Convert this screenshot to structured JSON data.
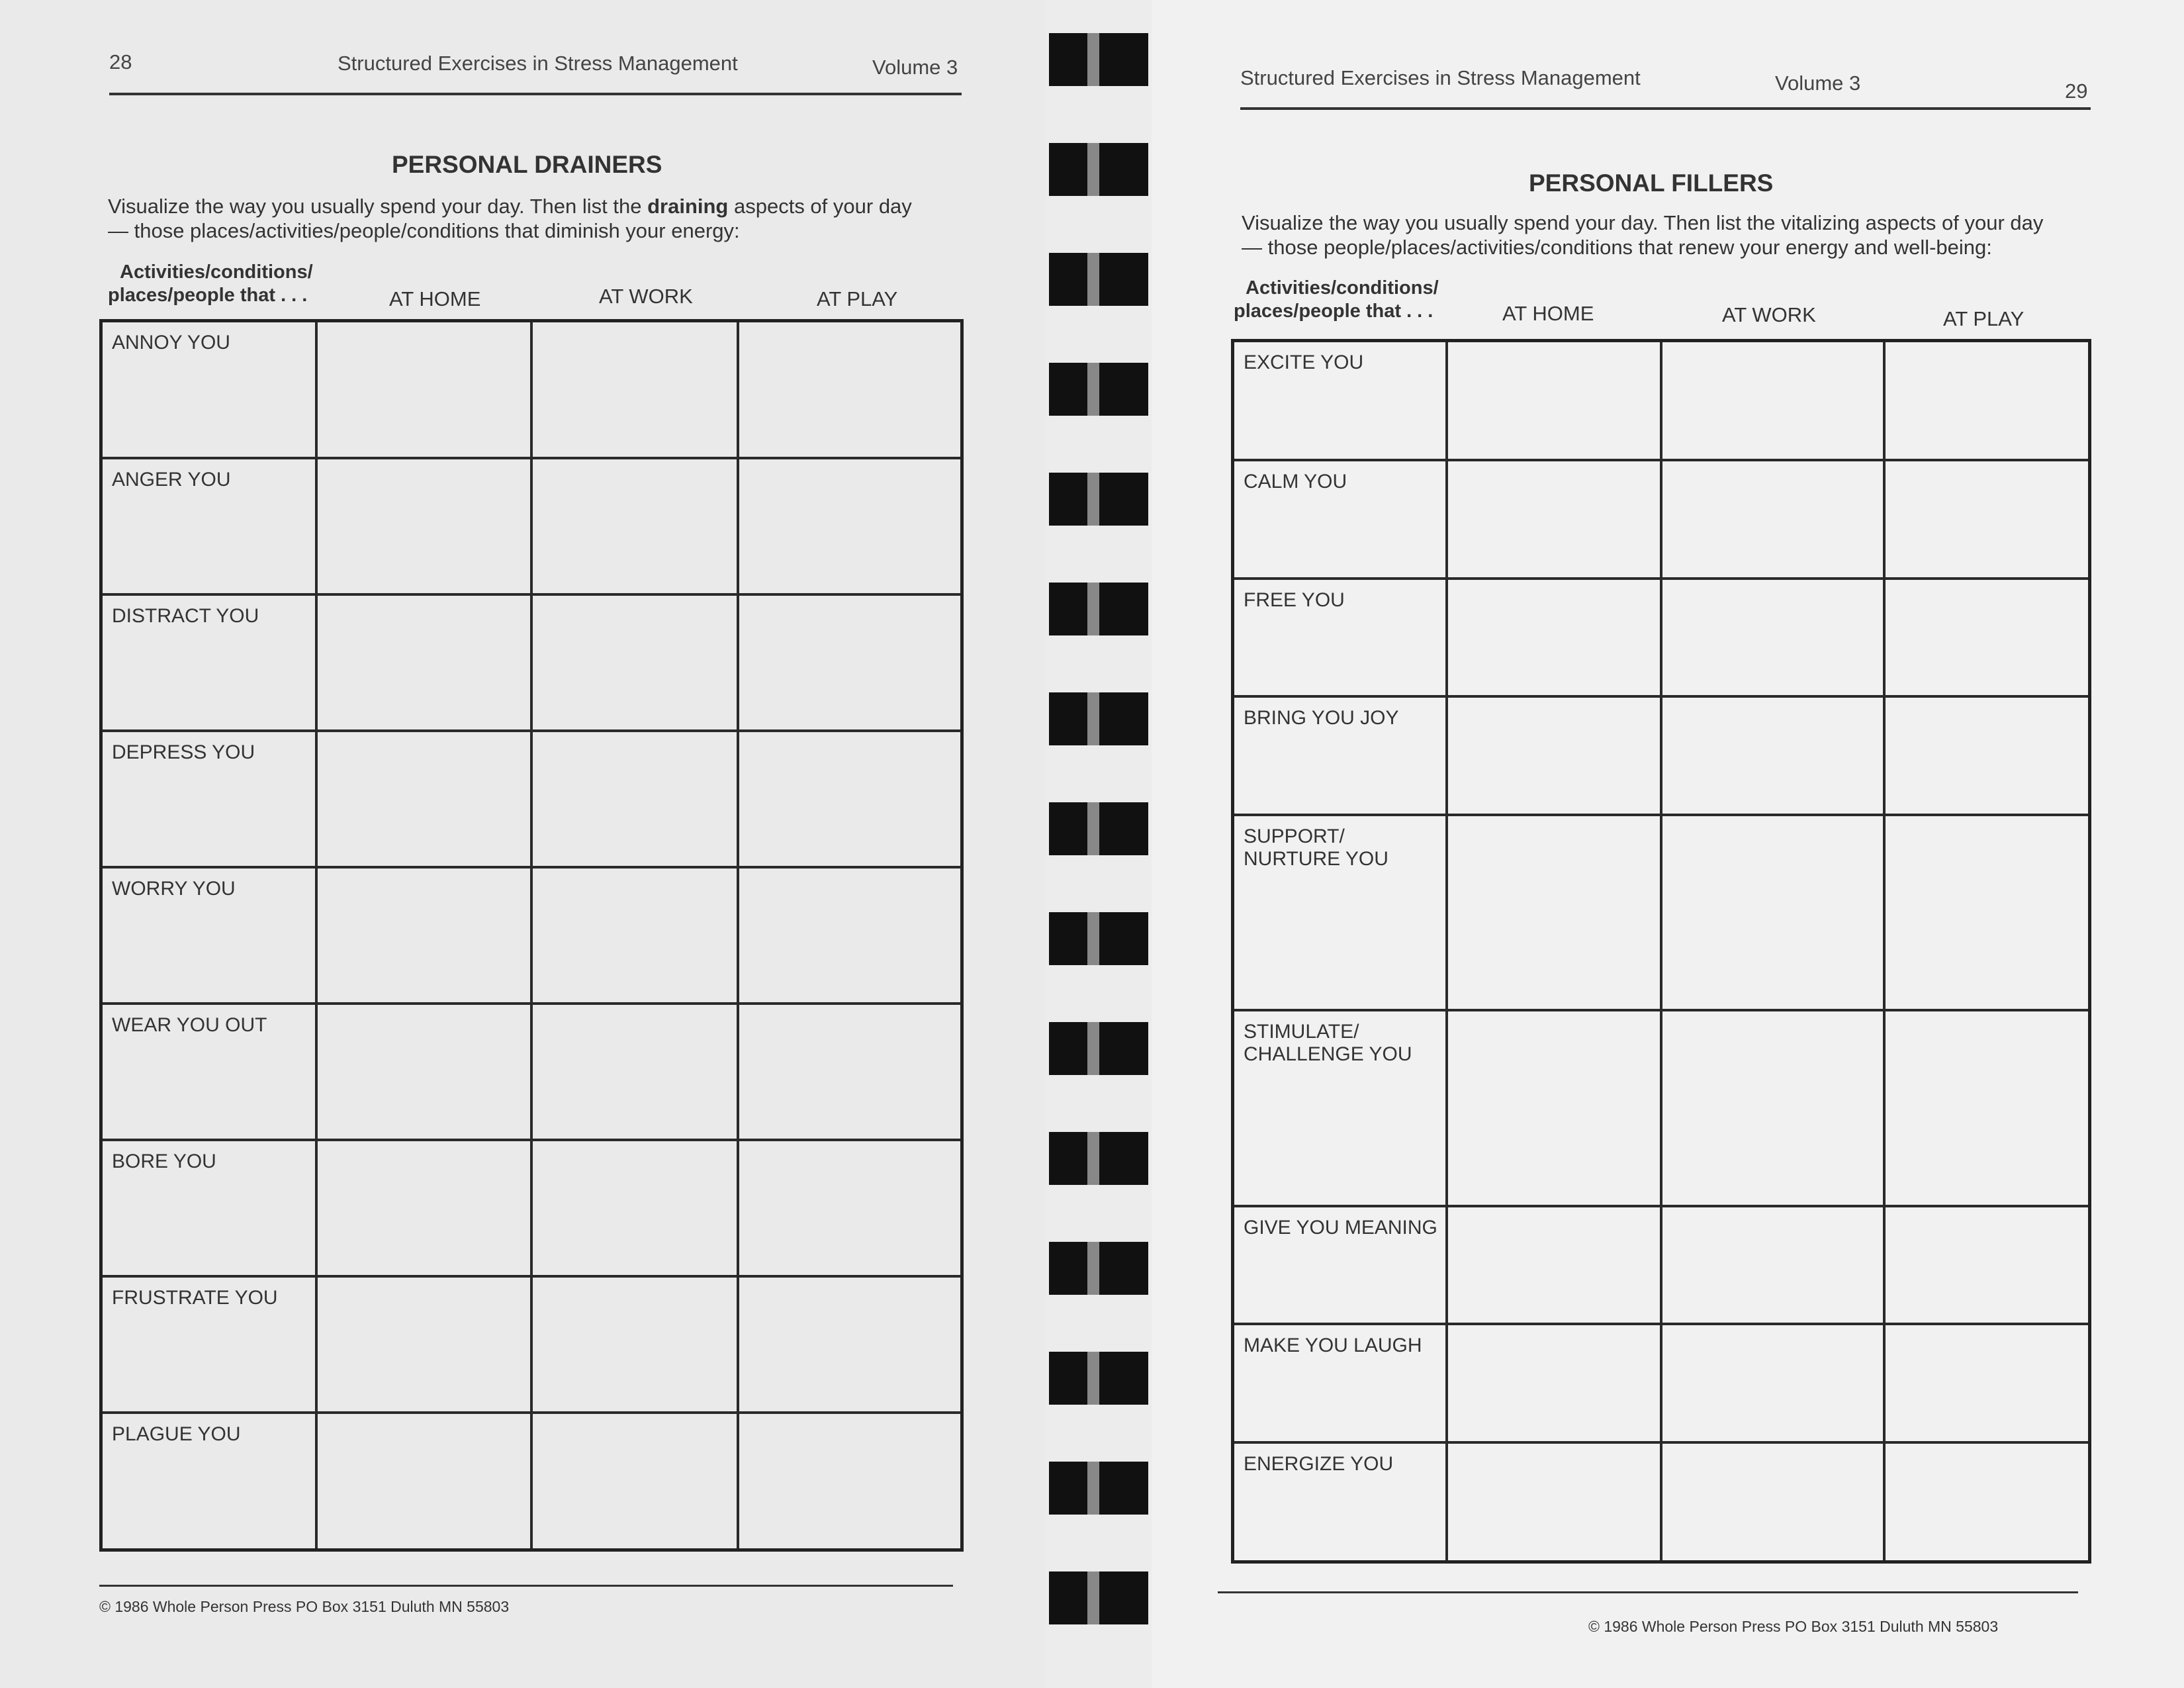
{
  "left_page": {
    "page_number": "28",
    "book_title": "Structured Exercises in Stress Management",
    "volume": "Volume 3",
    "title": "PERSONAL DRAINERS",
    "intro_before_bold": "Visualize the way you usually spend your day. Then list the ",
    "intro_bold": "draining",
    "intro_after_bold": " aspects of your day",
    "intro_line2": "— those places/activities/people/conditions that diminish your energy:",
    "row_header_line1": "Activities/conditions/",
    "row_header_line2": "places/people that . . .",
    "columns": [
      "AT HOME",
      "AT WORK",
      "AT PLAY"
    ],
    "rows": [
      "ANNOY YOU",
      "ANGER YOU",
      "DISTRACT YOU",
      "DEPRESS YOU",
      "WORRY YOU",
      "WEAR YOU OUT",
      "BORE YOU",
      "FRUSTRATE YOU",
      "PLAGUE YOU"
    ],
    "footer": "©  1986   Whole Person Press   PO Box 3151   Duluth MN 55803"
  },
  "right_page": {
    "page_number": "29",
    "book_title": "Structured Exercises in Stress Management",
    "volume": "Volume 3",
    "title": "PERSONAL FILLERS",
    "intro_line1": "Visualize the way you usually spend your day. Then list the vitalizing aspects of your day",
    "intro_line2": "— those people/places/activities/conditions that renew your energy and well-being:",
    "row_header_line1": "Activities/conditions/",
    "row_header_line2": "places/people that . . .",
    "columns": [
      "AT HOME",
      "AT WORK",
      "AT PLAY"
    ],
    "rows": [
      "EXCITE YOU",
      "CALM YOU",
      "FREE YOU",
      "BRING YOU JOY",
      "SUPPORT/\nNURTURE YOU",
      "STIMULATE/\nCHALLENGE YOU",
      "GIVE YOU MEANING",
      "MAKE YOU LAUGH",
      "ENERGIZE YOU"
    ],
    "footer": "©  1986   Whole Person Press   PO Box 3151   Duluth MN 55803"
  }
}
